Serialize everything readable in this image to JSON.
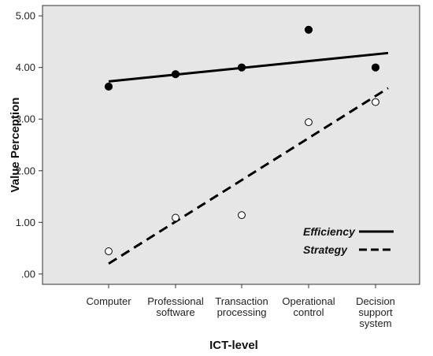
{
  "chart_data": {
    "type": "scatter",
    "title": "",
    "xlabel": "ICT-level",
    "ylabel": "Value Perception",
    "categories": [
      [
        "Computer"
      ],
      [
        "Professional",
        "software"
      ],
      [
        "Transaction",
        "processing"
      ],
      [
        "Operational",
        "control"
      ],
      [
        "Decision",
        "support",
        "system"
      ]
    ],
    "ylim": [
      -0.2,
      5.2
    ],
    "yticks": [
      ".00",
      "1.00",
      "2.00",
      "3.00",
      "4.00",
      "5.00"
    ],
    "ytick_values": [
      0,
      1,
      2,
      3,
      4,
      5
    ],
    "grid": false,
    "legend_position": "bottom-right",
    "series": [
      {
        "name": "Efficiency",
        "marker": "filled-circle",
        "line_style": "solid",
        "values": [
          3.63,
          3.87,
          4.0,
          4.73,
          4.0
        ],
        "fit_line": [
          3.73,
          4.28
        ]
      },
      {
        "name": "Strategy",
        "marker": "open-circle",
        "line_style": "dashed",
        "values": [
          0.44,
          1.09,
          1.14,
          2.94,
          3.33
        ],
        "fit_line": [
          0.2,
          3.6
        ]
      }
    ],
    "colors": {
      "plot_background": "#e6e6e6",
      "marks": "#000000"
    }
  }
}
